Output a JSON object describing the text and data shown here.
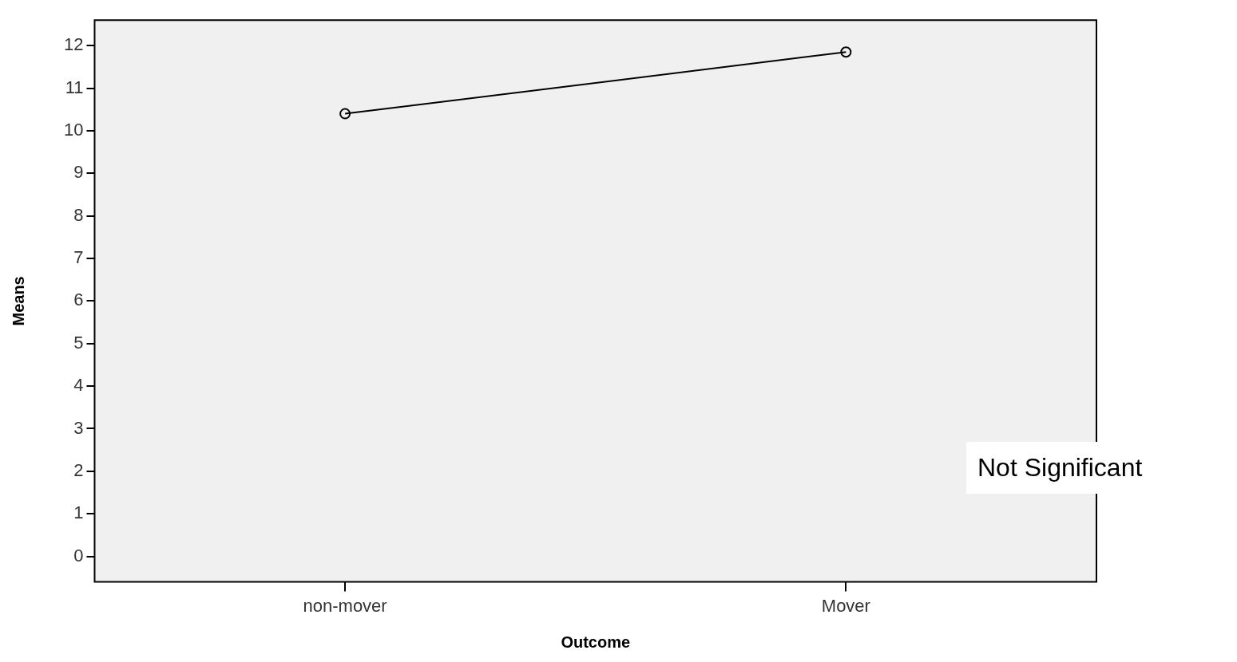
{
  "chart_data": {
    "type": "line",
    "xlabel": "Outcome",
    "ylabel": "Means",
    "categories": [
      "non-mover",
      "Mover"
    ],
    "series": [
      {
        "color": "#000000",
        "values": [
          10.4,
          11.85
        ]
      }
    ],
    "ylim": [
      -0.6,
      12.6
    ],
    "yticks": [
      0,
      1,
      2,
      3,
      4,
      5,
      6,
      7,
      8,
      9,
      10,
      11,
      12
    ],
    "marker": "circle",
    "line_style": "solid",
    "annotations": [
      "Not Significant"
    ]
  }
}
